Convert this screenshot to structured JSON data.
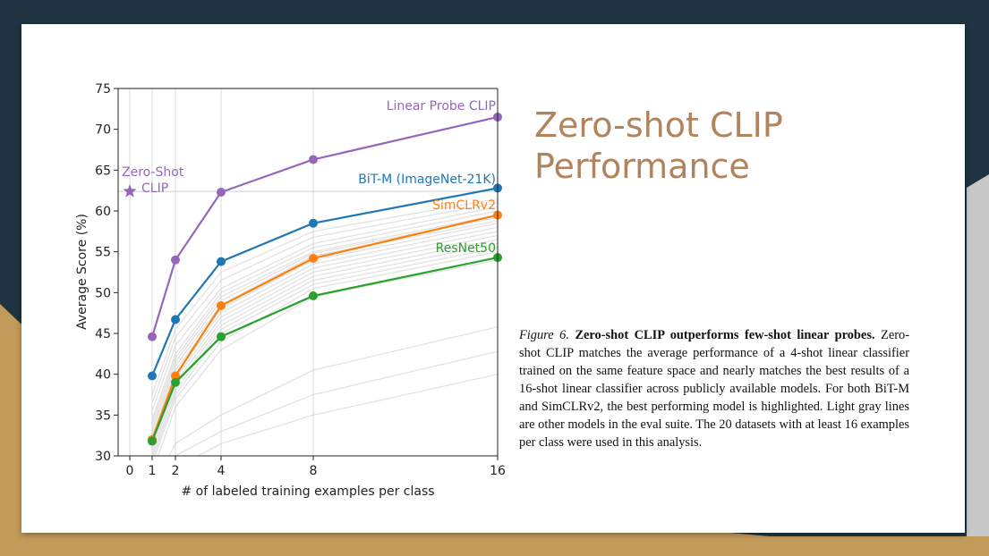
{
  "slide": {
    "title_lines": [
      "Zero-shot CLIP",
      "Performance"
    ],
    "caption": {
      "figure_label": "Figure 6.",
      "bold_text": "Zero-shot CLIP outperforms few-shot linear probes.",
      "body": "Zero-shot CLIP matches the average performance of a 4-shot linear classifier trained on the same feature space and nearly matches the best results of a 16-shot linear classifier across publicly available models. For both BiT-M and SimCLRv2, the best performing model is highlighted. Light gray lines are other models in the eval suite. The 20 datasets with at least 16 examples per class were used in this analysis."
    }
  },
  "chart_data": {
    "type": "line",
    "title": "",
    "xlabel": "# of labeled training examples per class",
    "ylabel": "Average Score (%)",
    "x_ticks": [
      0,
      1,
      2,
      4,
      8,
      16
    ],
    "y_ticks": [
      30,
      35,
      40,
      45,
      50,
      55,
      60,
      65,
      70,
      75
    ],
    "ylim": [
      30,
      75
    ],
    "grid": "vertical",
    "x": [
      1,
      2,
      4,
      8,
      16
    ],
    "series": [
      {
        "name": "Linear Probe CLIP",
        "color": "#9467bd",
        "values": [
          44.6,
          54.0,
          62.3,
          66.3,
          71.5
        ]
      },
      {
        "name": "BiT-M (ImageNet-21K)",
        "color": "#1f77b4",
        "values": [
          39.8,
          46.7,
          53.8,
          58.5,
          62.8
        ]
      },
      {
        "name": "SimCLRv2",
        "color": "#ff7f0e",
        "values": [
          32.0,
          39.8,
          48.4,
          54.2,
          59.5
        ]
      },
      {
        "name": "ResNet50",
        "color": "#2ca02c",
        "values": [
          31.8,
          39.0,
          44.6,
          49.6,
          54.3
        ]
      }
    ],
    "zero_shot": {
      "name_lines": [
        "Zero-Shot",
        "CLIP"
      ],
      "x": 0,
      "y": 62.4,
      "color": "#9467bd"
    },
    "background_series": [
      [
        37.5,
        45.5,
        52.5,
        57.5,
        61.5
      ],
      [
        36.5,
        44.5,
        51.5,
        56.8,
        61.0
      ],
      [
        35.5,
        43.5,
        50.5,
        56.0,
        60.5
      ],
      [
        34.5,
        42.5,
        50.0,
        55.5,
        60.0
      ],
      [
        34.0,
        42.0,
        49.5,
        55.0,
        59.5
      ],
      [
        33.5,
        41.5,
        49.0,
        54.8,
        59.2
      ],
      [
        33.0,
        41.0,
        48.5,
        54.5,
        58.8
      ],
      [
        32.5,
        40.5,
        48.0,
        54.0,
        58.5
      ],
      [
        32.0,
        40.0,
        47.5,
        53.5,
        58.0
      ],
      [
        31.5,
        39.5,
        47.0,
        53.0,
        57.5
      ],
      [
        31.0,
        39.0,
        46.5,
        52.5,
        57.0
      ],
      [
        30.5,
        38.5,
        46.0,
        52.0,
        56.5
      ],
      [
        30.0,
        38.0,
        45.5,
        51.5,
        56.0
      ],
      [
        29.5,
        37.5,
        45.0,
        51.0,
        55.5
      ],
      [
        29.0,
        37.0,
        44.0,
        50.5,
        55.0
      ],
      [
        28.0,
        36.0,
        43.0,
        49.5,
        54.0
      ],
      [
        26.0,
        31.5,
        35.0,
        40.5,
        45.8
      ],
      [
        25.0,
        30.0,
        33.0,
        37.5,
        42.8
      ],
      [
        24.0,
        28.5,
        31.5,
        35.0,
        40.0
      ]
    ]
  }
}
